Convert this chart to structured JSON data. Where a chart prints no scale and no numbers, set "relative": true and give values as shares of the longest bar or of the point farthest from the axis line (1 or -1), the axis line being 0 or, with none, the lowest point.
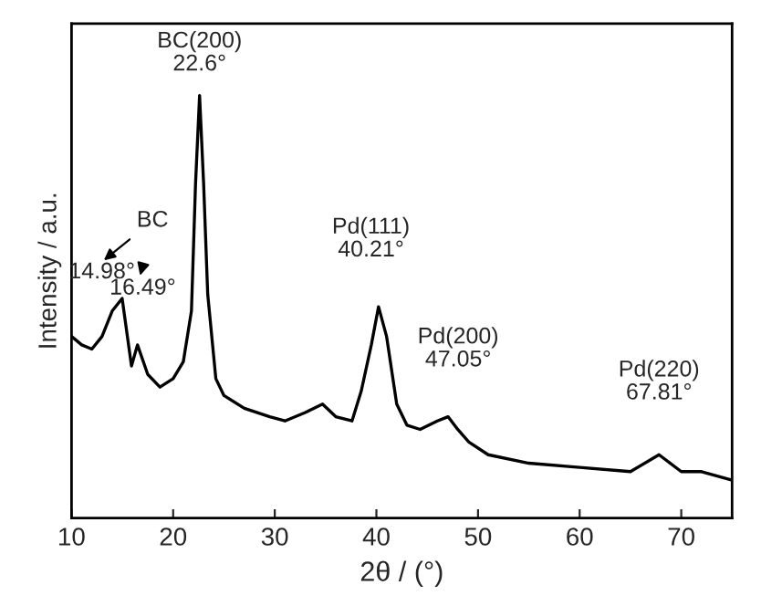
{
  "chart_data": {
    "type": "line",
    "relative": true,
    "xlabel": "2θ / (°)",
    "ylabel": "Intensity / a.u.",
    "xlim": [
      10,
      75
    ],
    "xticks": [
      10,
      20,
      30,
      40,
      50,
      60,
      70
    ],
    "grid": false,
    "legend": false,
    "tick_labels": "x",
    "x": [
      10,
      11,
      12,
      13,
      14,
      14.98,
      15.9,
      16.49,
      17.5,
      18.7,
      20,
      21,
      21.8,
      22.2,
      22.6,
      23,
      23.4,
      24.2,
      25,
      27,
      29.5,
      31,
      33,
      34.7,
      36,
      37.6,
      38.5,
      39.5,
      40.21,
      41,
      42,
      43,
      44.3,
      46,
      47.05,
      48,
      49.1,
      51,
      55,
      60,
      65,
      67.81,
      70,
      72,
      75
    ],
    "series": [
      {
        "color": "#000000",
        "values": [
          0.43,
          0.41,
          0.4,
          0.43,
          0.49,
          0.52,
          0.36,
          0.41,
          0.34,
          0.31,
          0.33,
          0.37,
          0.49,
          0.79,
          1.0,
          0.79,
          0.53,
          0.33,
          0.29,
          0.26,
          0.24,
          0.23,
          0.25,
          0.27,
          0.24,
          0.23,
          0.3,
          0.41,
          0.5,
          0.43,
          0.27,
          0.22,
          0.21,
          0.23,
          0.24,
          0.21,
          0.18,
          0.15,
          0.13,
          0.12,
          0.11,
          0.15,
          0.11,
          0.11,
          0.09
        ]
      }
    ],
    "annotations": [
      {
        "text": "BC(200)\n22.6°",
        "x": 22.6,
        "y": 1.0
      },
      {
        "text": "14.98°",
        "x": 14.98,
        "y": 0.52
      },
      {
        "text": "16.49°",
        "x": 16.49,
        "y": 0.41
      },
      "BC",
      {
        "text": "Pd(111)\n40.21°",
        "x": 40.21,
        "y": 0.5
      },
      {
        "text": "Pd(200)\n47.05°",
        "x": 47.05,
        "y": 0.24
      },
      {
        "text": "Pd(220)\n67.81°",
        "x": 67.81,
        "y": 0.15
      }
    ]
  }
}
